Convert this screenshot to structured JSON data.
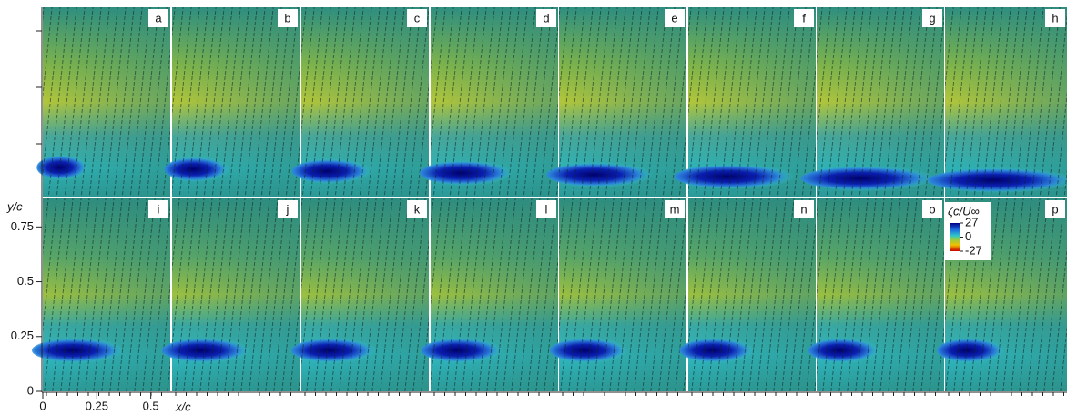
{
  "chart_data": {
    "type": "contour",
    "panels": [
      "a",
      "b",
      "c",
      "d",
      "e",
      "f",
      "g",
      "h",
      "i",
      "j",
      "k",
      "l",
      "m",
      "n",
      "o",
      "p"
    ],
    "xlabel": "x/c",
    "ylabel": "y/c",
    "xlim": [
      0,
      0.59
    ],
    "xticks": [
      0,
      0.25,
      0.5
    ],
    "ylim": [
      0,
      0.88
    ],
    "yticks": [
      0,
      0.25,
      0.5,
      0.75
    ],
    "colorbar": {
      "label": "ζc/U∞",
      "lim": [
        -27,
        27
      ],
      "ticks": [
        27,
        0,
        -27
      ]
    }
  }
}
